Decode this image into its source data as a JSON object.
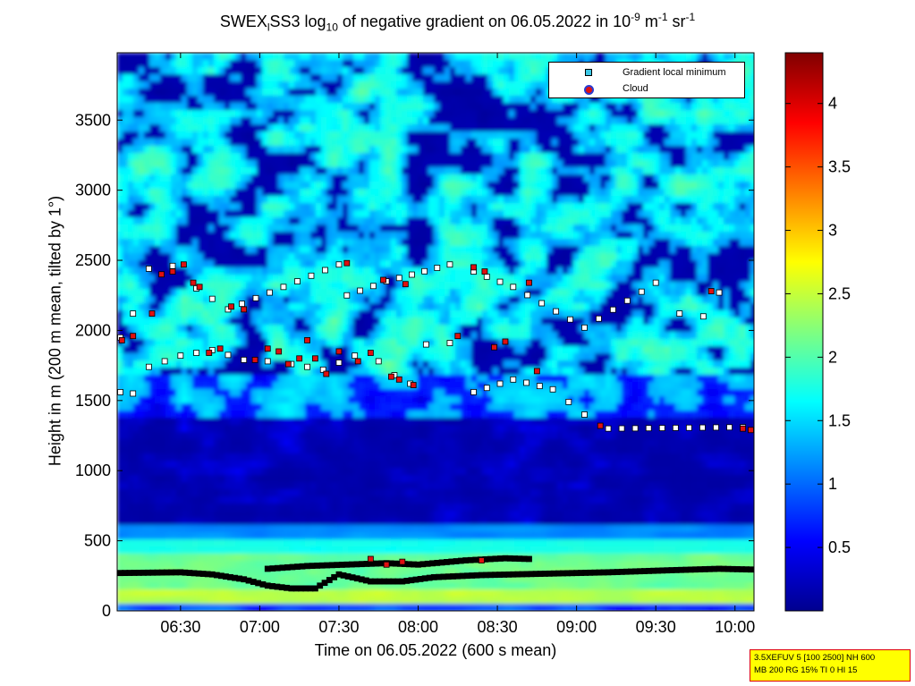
{
  "chart_data": {
    "type": "heatmap",
    "title_parts": {
      "pre": "SWEX",
      "sub1": "l",
      "mid": "SS3 log",
      "sub2": "10",
      "post": " of negative gradient on 06.05.2022 in 10",
      "sup1": "-9",
      "unit1": " m",
      "sup2": "-1",
      "unit2": " sr",
      "sup3": "-1"
    },
    "xlabel": "Time on 06.05.2022 (600 s mean)",
    "ylabel": "Height in m (200 m mean, tilted by 1°)",
    "x_ticks": [
      "06:30",
      "07:00",
      "07:30",
      "08:00",
      "08:30",
      "09:00",
      "09:30",
      "10:00"
    ],
    "x_tick_hours": [
      6.5,
      7.0,
      7.5,
      8.0,
      8.5,
      9.0,
      9.5,
      10.0
    ],
    "xlim_hours": [
      6.1,
      10.12
    ],
    "y_ticks": [
      0,
      500,
      1000,
      1500,
      2000,
      2500,
      3000,
      3500
    ],
    "ylim": [
      0,
      3980
    ],
    "colorbar": {
      "ticks": [
        "0.5",
        "1",
        "1.5",
        "2",
        "2.5",
        "3",
        "3.5",
        "4"
      ],
      "tick_values": [
        0.5,
        1.0,
        1.5,
        2.0,
        2.5,
        3.0,
        3.5,
        4.0
      ],
      "range": [
        0.0,
        4.4
      ],
      "colormap": "jet"
    },
    "legend": {
      "position": "top-right",
      "entries": [
        "Gradient local minimum",
        "Cloud"
      ]
    },
    "marker_colors": {
      "gradient_min_fill": "#ffffff",
      "gradient_min_edge": "#000000",
      "cloud_fill": "#e01010",
      "legend_square": "#3cc8e6",
      "legend_circle_edge": "#2b3bd0"
    },
    "gradient_minima_tracks": [
      {
        "name": "boundary-layer-lower",
        "points": [
          [
            6.12,
            270
          ],
          [
            6.5,
            275
          ],
          [
            6.7,
            260
          ],
          [
            6.9,
            225
          ],
          [
            7.05,
            180
          ],
          [
            7.2,
            160
          ],
          [
            7.35,
            160
          ],
          [
            7.5,
            260
          ],
          [
            7.7,
            210
          ],
          [
            7.9,
            210
          ],
          [
            8.1,
            240
          ],
          [
            8.4,
            255
          ],
          [
            8.8,
            265
          ],
          [
            9.2,
            275
          ],
          [
            9.6,
            290
          ],
          [
            9.9,
            300
          ],
          [
            10.1,
            295
          ]
        ]
      },
      {
        "name": "boundary-layer-upper",
        "points": [
          [
            7.05,
            300
          ],
          [
            7.3,
            320
          ],
          [
            7.55,
            330
          ],
          [
            7.8,
            340
          ],
          [
            8.0,
            330
          ],
          [
            8.3,
            360
          ],
          [
            8.55,
            375
          ],
          [
            8.7,
            370
          ]
        ]
      },
      {
        "name": "cloud-layer-1800",
        "points": [
          [
            6.12,
            1560
          ],
          [
            6.2,
            1550
          ],
          [
            6.3,
            1740
          ],
          [
            6.5,
            1820
          ],
          [
            6.7,
            1860
          ],
          [
            6.9,
            1790
          ],
          [
            7.05,
            1780
          ],
          [
            7.2,
            1760
          ],
          [
            7.4,
            1720
          ],
          [
            7.6,
            1820
          ],
          [
            7.75,
            1780
          ],
          [
            7.85,
            1680
          ],
          [
            7.95,
            1620
          ],
          [
            8.05,
            1900
          ],
          [
            8.2,
            1910
          ],
          [
            8.35,
            1560
          ],
          [
            8.6,
            1650
          ],
          [
            8.85,
            1580
          ],
          [
            9.05,
            1400
          ],
          [
            9.2,
            1300
          ],
          [
            10.05,
            1310
          ]
        ]
      },
      {
        "name": "cloud-layer-2300",
        "points": [
          [
            6.12,
            1950
          ],
          [
            6.2,
            2120
          ],
          [
            6.3,
            2440
          ],
          [
            6.45,
            2460
          ],
          [
            6.6,
            2300
          ],
          [
            6.8,
            2150
          ],
          [
            7.5,
            2470
          ],
          [
            7.55,
            2250
          ],
          [
            7.8,
            2350
          ],
          [
            8.2,
            2470
          ],
          [
            8.35,
            2420
          ],
          [
            8.6,
            2310
          ],
          [
            9.05,
            2020
          ],
          [
            9.5,
            2340
          ],
          [
            9.65,
            2120
          ],
          [
            9.8,
            2100
          ],
          [
            9.9,
            2270
          ]
        ]
      }
    ],
    "clouds": [
      [
        6.13,
        1930
      ],
      [
        6.2,
        1960
      ],
      [
        6.32,
        2120
      ],
      [
        6.38,
        2400
      ],
      [
        6.45,
        2420
      ],
      [
        6.52,
        2470
      ],
      [
        6.58,
        2340
      ],
      [
        6.62,
        2310
      ],
      [
        6.68,
        1840
      ],
      [
        6.75,
        1870
      ],
      [
        6.82,
        2170
      ],
      [
        6.9,
        2150
      ],
      [
        6.97,
        1790
      ],
      [
        7.05,
        1870
      ],
      [
        7.12,
        1850
      ],
      [
        7.18,
        1760
      ],
      [
        7.25,
        1800
      ],
      [
        7.3,
        1930
      ],
      [
        7.35,
        1800
      ],
      [
        7.42,
        1690
      ],
      [
        7.5,
        1850
      ],
      [
        7.55,
        2480
      ],
      [
        7.62,
        1780
      ],
      [
        7.7,
        1840
      ],
      [
        7.78,
        2360
      ],
      [
        7.83,
        1670
      ],
      [
        7.88,
        1650
      ],
      [
        7.92,
        2330
      ],
      [
        7.97,
        1610
      ],
      [
        8.25,
        1960
      ],
      [
        8.35,
        2450
      ],
      [
        8.42,
        2420
      ],
      [
        8.48,
        1880
      ],
      [
        8.55,
        1920
      ],
      [
        8.7,
        2340
      ],
      [
        8.75,
        1710
      ],
      [
        9.15,
        1320
      ],
      [
        9.85,
        2280
      ],
      [
        10.05,
        1300
      ],
      [
        10.1,
        1290
      ],
      [
        7.7,
        370
      ],
      [
        7.9,
        350
      ],
      [
        8.4,
        360
      ],
      [
        7.8,
        330
      ]
    ]
  }
}
